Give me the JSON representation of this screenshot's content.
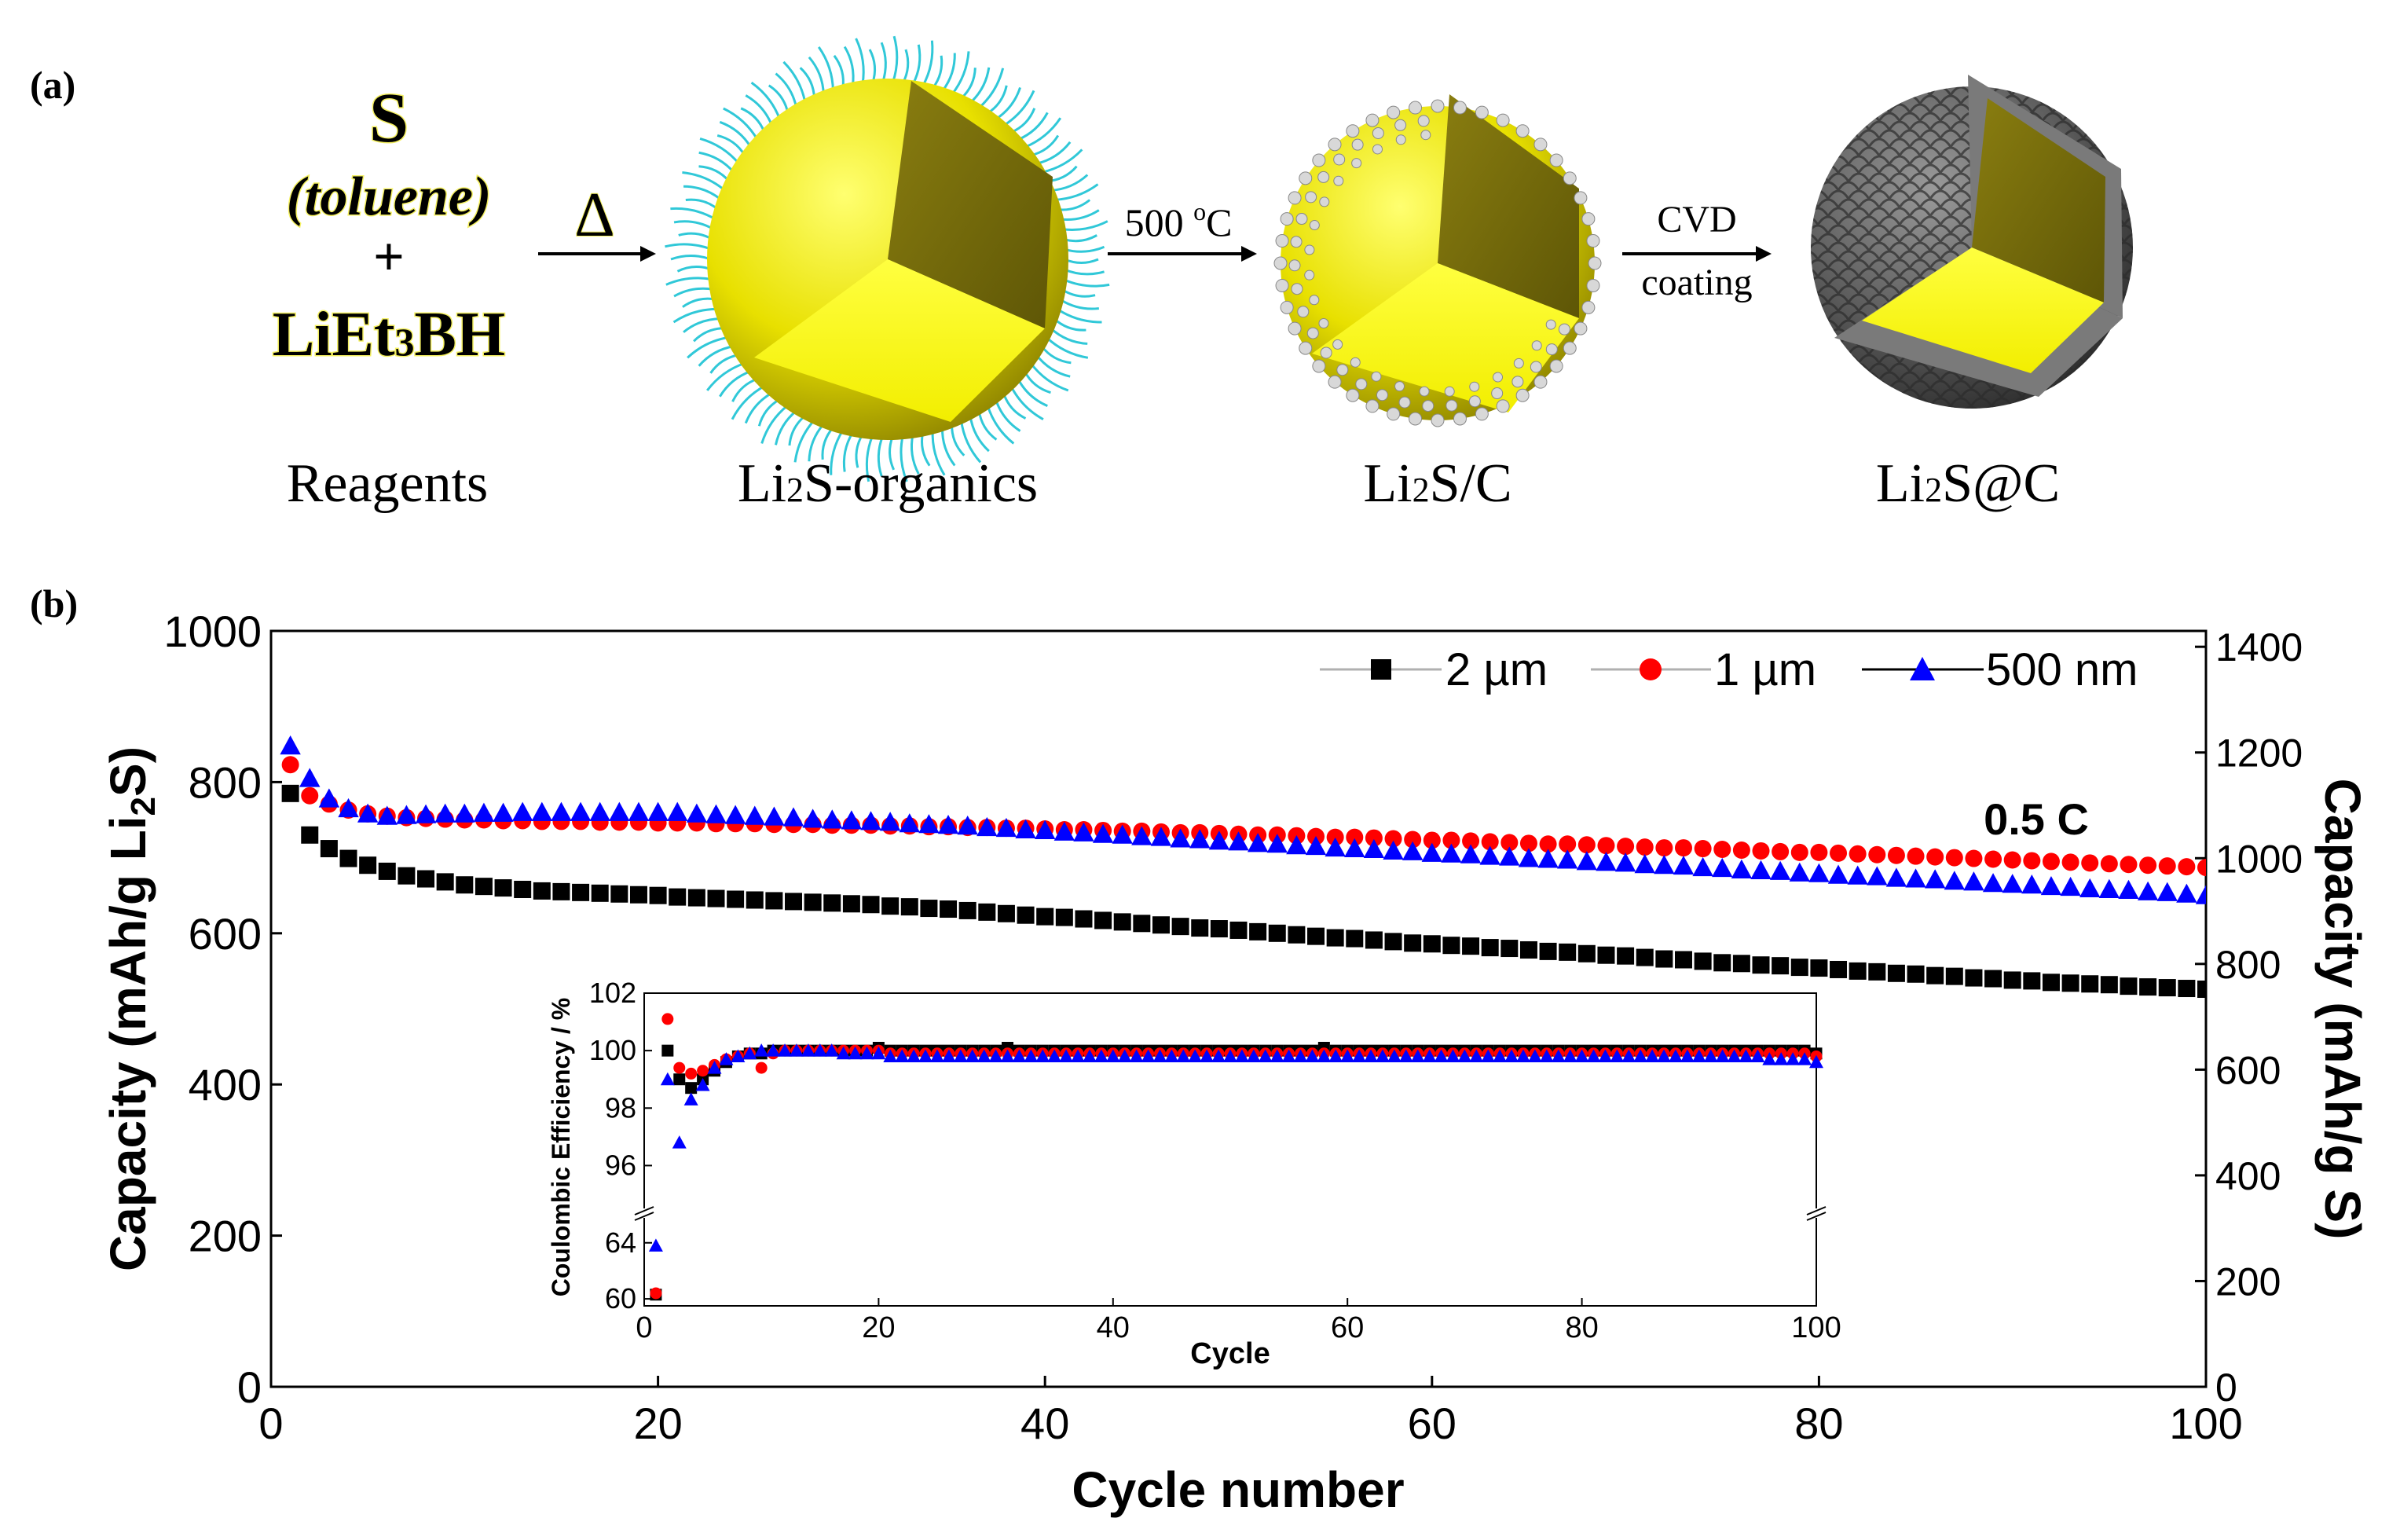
{
  "panel_a": {
    "label": "(a)",
    "reagent_s": "S",
    "reagent_solvent": "(toluene)",
    "reagent_plus": "+",
    "reagent_li": "LiEt",
    "reagent_li_sub": "3",
    "reagent_li_tail": "BH",
    "heat_symbol": "Δ",
    "step2_temp": "500 ",
    "step2_sup": "o",
    "step2_unit": "C",
    "step3_line1": "CVD",
    "step3_line2": "coating",
    "captions": [
      {
        "pre": "Reagents",
        "sub": "",
        "post": ""
      },
      {
        "pre": "Li",
        "sub": "2",
        "post": "S-organics"
      },
      {
        "pre": "Li",
        "sub": "2",
        "post": "S/C"
      },
      {
        "pre": "Li",
        "sub": "2",
        "post": "S@C"
      }
    ],
    "colors": {
      "core": "#e8e000",
      "ligand": "#30c8d8",
      "carbon_shell": "#555555",
      "particle": "#d8d8d8"
    }
  },
  "panel_b": {
    "label": "(b)",
    "annotation": "0.5 C",
    "ylabel_pre": "Capacity (mAh/g Li",
    "ylabel_sub": "2",
    "ylabel_post": "S)",
    "y2label": "Capacity (mAh/g S)",
    "xlabel": "Cycle number",
    "legend": [
      "2 µm",
      "1 µm",
      "500 nm"
    ]
  },
  "chart_data": [
    {
      "type": "scatter",
      "title": "",
      "xlabel": "Cycle number",
      "ylabel": "Capacity (mAh/g Li2S)",
      "y2label": "Capacity (mAh/g S)",
      "xlim": [
        0,
        100
      ],
      "ylim": [
        0,
        1000
      ],
      "y2lim": [
        0,
        1430
      ],
      "xticks": [
        0,
        20,
        40,
        60,
        80,
        100
      ],
      "yticks": [
        0,
        200,
        400,
        600,
        800,
        1000
      ],
      "y2ticks": [
        0,
        200,
        400,
        600,
        800,
        1000,
        1200,
        1400
      ],
      "x": [
        1,
        2,
        3,
        4,
        5,
        6,
        7,
        8,
        9,
        10,
        11,
        12,
        13,
        14,
        15,
        16,
        17,
        18,
        19,
        20,
        21,
        22,
        23,
        24,
        25,
        26,
        27,
        28,
        29,
        30,
        31,
        32,
        33,
        34,
        35,
        36,
        37,
        38,
        39,
        40,
        41,
        42,
        43,
        44,
        45,
        46,
        47,
        48,
        49,
        50,
        51,
        52,
        53,
        54,
        55,
        56,
        57,
        58,
        59,
        60,
        61,
        62,
        63,
        64,
        65,
        66,
        67,
        68,
        69,
        70,
        71,
        72,
        73,
        74,
        75,
        76,
        77,
        78,
        79,
        80,
        81,
        82,
        83,
        84,
        85,
        86,
        87,
        88,
        89,
        90,
        91,
        92,
        93,
        94,
        95,
        96,
        97,
        98,
        99,
        100
      ],
      "series": [
        {
          "name": "2 µm",
          "marker": "square",
          "color": "#000000",
          "values": [
            785,
            730,
            712,
            699,
            690,
            682,
            676,
            672,
            668,
            664,
            662,
            660,
            658,
            656,
            655,
            654,
            653,
            652,
            651,
            650,
            648,
            647,
            646,
            645,
            644,
            643,
            642,
            641,
            640,
            639,
            638,
            636,
            635,
            633,
            632,
            630,
            628,
            626,
            624,
            622,
            621,
            619,
            617,
            615,
            613,
            611,
            609,
            607,
            606,
            604,
            602,
            600,
            598,
            596,
            594,
            593,
            591,
            589,
            587,
            586,
            584,
            583,
            581,
            580,
            578,
            576,
            575,
            573,
            571,
            570,
            568,
            566,
            565,
            563,
            561,
            560,
            558,
            557,
            555,
            554,
            552,
            550,
            549,
            547,
            546,
            544,
            543,
            541,
            540,
            538,
            537,
            535,
            534,
            533,
            532,
            530,
            529,
            528,
            527,
            526
          ]
        },
        {
          "name": "1 µm",
          "marker": "circle",
          "color": "#ff0000",
          "values": [
            823,
            782,
            771,
            763,
            758,
            755,
            753,
            752,
            751,
            750,
            750,
            749,
            749,
            748,
            748,
            748,
            747,
            747,
            747,
            746,
            746,
            746,
            745,
            745,
            745,
            744,
            744,
            744,
            743,
            743,
            743,
            742,
            742,
            741,
            741,
            740,
            740,
            739,
            739,
            738,
            737,
            737,
            736,
            735,
            735,
            734,
            733,
            733,
            732,
            731,
            730,
            730,
            729,
            728,
            727,
            727,
            726,
            725,
            724,
            723,
            723,
            722,
            721,
            720,
            719,
            718,
            718,
            717,
            716,
            715,
            714,
            713,
            713,
            712,
            711,
            710,
            709,
            708,
            707,
            707,
            706,
            705,
            704,
            703,
            702,
            701,
            700,
            699,
            698,
            697,
            696,
            695,
            694,
            693,
            692,
            691,
            690,
            689,
            688,
            687
          ]
        },
        {
          "name": "500 nm",
          "marker": "triangle",
          "color": "#0000ff",
          "values": [
            848,
            805,
            778,
            765,
            758,
            755,
            756,
            757,
            758,
            758,
            759,
            759,
            760,
            760,
            760,
            760,
            760,
            760,
            760,
            760,
            760,
            758,
            757,
            756,
            755,
            754,
            753,
            751,
            750,
            749,
            748,
            747,
            745,
            744,
            743,
            742,
            740,
            739,
            737,
            736,
            734,
            733,
            731,
            730,
            728,
            727,
            725,
            724,
            722,
            721,
            719,
            718,
            716,
            715,
            713,
            712,
            711,
            709,
            708,
            706,
            705,
            704,
            702,
            701,
            699,
            698,
            697,
            695,
            694,
            693,
            691,
            690,
            689,
            687,
            686,
            684,
            683,
            682,
            680,
            679,
            677,
            676,
            675,
            673,
            672,
            671,
            669,
            668,
            666,
            665,
            664,
            662,
            661,
            659,
            658,
            657,
            655,
            654,
            652,
            650
          ]
        }
      ],
      "annotations": [
        "0.5 C"
      ],
      "legend_position": "top-right",
      "grid": false
    },
    {
      "type": "scatter",
      "title": "",
      "xlabel": "Cycle",
      "ylabel": "Coulombic Efficiency / %",
      "xlim": [
        0,
        100
      ],
      "ylim_upper": [
        95,
        102
      ],
      "ylim_lower": [
        59.5,
        65.5
      ],
      "axis_break": true,
      "xticks": [
        0,
        20,
        40,
        60,
        80,
        100
      ],
      "yticks": [
        60,
        64,
        96,
        98,
        100,
        102
      ],
      "x": [
        1,
        2,
        3,
        4,
        5,
        6,
        7,
        8,
        9,
        10,
        11,
        12,
        13,
        14,
        15,
        16,
        17,
        18,
        19,
        20,
        21,
        22,
        23,
        24,
        25,
        26,
        27,
        28,
        29,
        30,
        31,
        32,
        33,
        34,
        35,
        36,
        37,
        38,
        39,
        40,
        41,
        42,
        43,
        44,
        45,
        46,
        47,
        48,
        49,
        50,
        51,
        52,
        53,
        54,
        55,
        56,
        57,
        58,
        59,
        60,
        61,
        62,
        63,
        64,
        65,
        66,
        67,
        68,
        69,
        70,
        71,
        72,
        73,
        74,
        75,
        76,
        77,
        78,
        79,
        80,
        81,
        82,
        83,
        84,
        85,
        86,
        87,
        88,
        89,
        90,
        91,
        92,
        93,
        94,
        95,
        96,
        97,
        98,
        99,
        100
      ],
      "series": [
        {
          "name": "2 µm",
          "marker": "square",
          "color": "#000000",
          "values": [
            60.3,
            100.0,
            99.0,
            98.7,
            99.0,
            99.3,
            99.6,
            99.8,
            99.9,
            99.9,
            100.0,
            100.0,
            100.0,
            100.0,
            100.0,
            100.0,
            100.0,
            100.0,
            100.0,
            100.1,
            100.0,
            100.0,
            100.0,
            100.0,
            100.0,
            100.0,
            100.0,
            100.0,
            100.0,
            100.0,
            100.1,
            100.0,
            100.0,
            100.0,
            100.0,
            100.0,
            100.0,
            100.0,
            100.0,
            100.0,
            100.0,
            100.0,
            100.0,
            100.0,
            100.0,
            100.0,
            100.0,
            100.0,
            100.0,
            100.0,
            100.0,
            100.0,
            100.0,
            100.0,
            100.0,
            100.0,
            100.0,
            100.1,
            100.0,
            100.0,
            100.0,
            100.0,
            100.0,
            100.0,
            100.0,
            100.0,
            100.0,
            100.0,
            100.0,
            100.0,
            100.0,
            100.0,
            100.0,
            100.0,
            100.0,
            100.0,
            100.0,
            100.0,
            100.0,
            100.0,
            100.0,
            100.0,
            100.0,
            100.0,
            100.0,
            100.0,
            100.0,
            100.0,
            100.0,
            100.0,
            100.0,
            100.0,
            100.0,
            100.0,
            100.0,
            100.0,
            100.0,
            100.0,
            100.0,
            99.9
          ]
        },
        {
          "name": "1 µm",
          "marker": "circle",
          "color": "#ff0000",
          "values": [
            60.4,
            101.1,
            99.4,
            99.2,
            99.3,
            99.5,
            99.7,
            99.8,
            99.9,
            99.4,
            99.9,
            100.0,
            100.0,
            100.0,
            100.0,
            100.0,
            100.0,
            100.0,
            100.0,
            100.0,
            99.9,
            99.9,
            99.9,
            99.9,
            99.9,
            99.9,
            99.9,
            99.9,
            99.9,
            99.9,
            99.9,
            99.9,
            99.9,
            99.9,
            99.9,
            99.9,
            99.9,
            99.9,
            99.9,
            99.9,
            99.9,
            99.9,
            99.9,
            99.9,
            99.9,
            99.9,
            99.9,
            99.9,
            99.9,
            99.9,
            99.9,
            99.9,
            99.9,
            99.9,
            99.9,
            99.9,
            99.9,
            99.9,
            99.9,
            99.9,
            99.9,
            99.9,
            99.9,
            99.9,
            99.9,
            99.9,
            99.9,
            99.9,
            99.9,
            99.9,
            99.9,
            99.9,
            99.9,
            99.9,
            99.9,
            99.9,
            99.9,
            99.9,
            99.9,
            99.9,
            99.9,
            99.9,
            99.9,
            99.9,
            99.9,
            99.9,
            99.9,
            99.9,
            99.9,
            99.9,
            99.9,
            99.9,
            99.9,
            99.9,
            99.9,
            99.9,
            99.9,
            99.9,
            99.9,
            99.8
          ]
        },
        {
          "name": "500 nm",
          "marker": "triangle",
          "color": "#0000ff",
          "values": [
            63.8,
            99.0,
            96.8,
            98.3,
            98.8,
            99.4,
            99.7,
            99.8,
            99.9,
            100.0,
            100.0,
            100.0,
            100.0,
            100.0,
            100.0,
            100.0,
            99.9,
            99.9,
            99.9,
            99.9,
            99.8,
            99.8,
            99.8,
            99.8,
            99.8,
            99.8,
            99.8,
            99.8,
            99.8,
            99.8,
            99.8,
            99.8,
            99.8,
            99.8,
            99.8,
            99.8,
            99.8,
            99.8,
            99.8,
            99.8,
            99.8,
            99.8,
            99.8,
            99.8,
            99.8,
            99.8,
            99.8,
            99.8,
            99.8,
            99.8,
            99.8,
            99.8,
            99.8,
            99.8,
            99.8,
            99.8,
            99.8,
            99.8,
            99.8,
            99.8,
            99.8,
            99.8,
            99.8,
            99.8,
            99.8,
            99.8,
            99.8,
            99.8,
            99.8,
            99.8,
            99.8,
            99.8,
            99.8,
            99.8,
            99.8,
            99.8,
            99.8,
            99.8,
            99.8,
            99.8,
            99.8,
            99.8,
            99.8,
            99.8,
            99.8,
            99.8,
            99.8,
            99.8,
            99.8,
            99.8,
            99.8,
            99.8,
            99.8,
            99.8,
            99.8,
            99.7,
            99.7,
            99.7,
            99.7,
            99.6
          ]
        }
      ],
      "legend_position": "none"
    }
  ]
}
